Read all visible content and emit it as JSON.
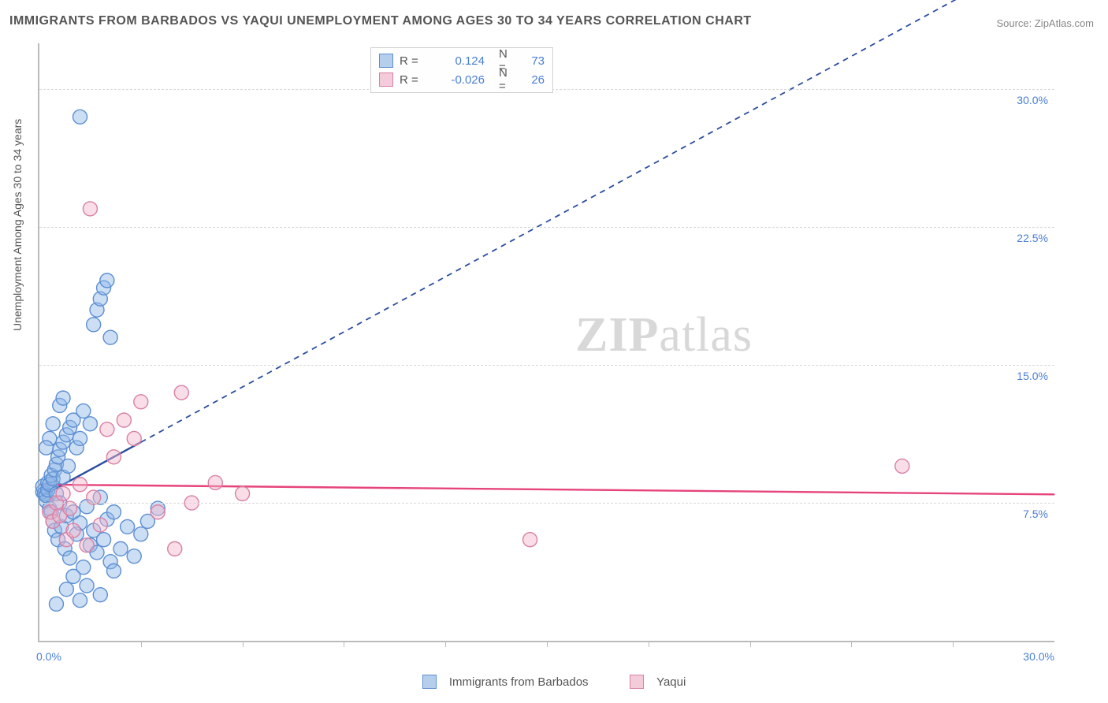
{
  "title": "IMMIGRANTS FROM BARBADOS VS YAQUI UNEMPLOYMENT AMONG AGES 30 TO 34 YEARS CORRELATION CHART",
  "source": "Source: ZipAtlas.com",
  "ylabel": "Unemployment Among Ages 30 to 34 years",
  "watermark_zip": "ZIP",
  "watermark_atlas": "atlas",
  "chart": {
    "type": "scatter",
    "xlim": [
      0,
      30
    ],
    "ylim": [
      0,
      32.5
    ],
    "x_origin_label": "0.0%",
    "x_max_label": "30.0%",
    "y_tick_values": [
      7.5,
      15.0,
      22.5,
      30.0
    ],
    "y_tick_labels": [
      "7.5%",
      "15.0%",
      "22.5%",
      "30.0%"
    ],
    "x_minor_ticks": [
      3,
      6,
      9,
      12,
      15,
      18,
      21,
      24,
      27
    ],
    "background_color": "#ffffff",
    "grid_color": "#d8d8d8",
    "axis_color": "#bbbbbb",
    "marker_radius": 9,
    "series": [
      {
        "name": "Immigrants from Barbados",
        "color_fill": "#8fb5e6",
        "color_stroke": "#5d8fd3",
        "R": "0.124",
        "N": "73",
        "trend": {
          "slope": 1.0,
          "intercept": 7.8,
          "solid_until_x": 3.0,
          "color": "#2a4da0"
        },
        "points": [
          [
            0.1,
            8.1
          ],
          [
            0.1,
            8.4
          ],
          [
            0.15,
            8.0
          ],
          [
            0.2,
            7.6
          ],
          [
            0.2,
            7.9
          ],
          [
            0.25,
            8.2
          ],
          [
            0.25,
            8.6
          ],
          [
            0.3,
            7.2
          ],
          [
            0.3,
            8.5
          ],
          [
            0.35,
            9.0
          ],
          [
            0.35,
            7.0
          ],
          [
            0.4,
            6.5
          ],
          [
            0.4,
            8.8
          ],
          [
            0.45,
            9.3
          ],
          [
            0.45,
            6.0
          ],
          [
            0.5,
            8.0
          ],
          [
            0.5,
            9.6
          ],
          [
            0.55,
            5.5
          ],
          [
            0.55,
            10.0
          ],
          [
            0.6,
            7.5
          ],
          [
            0.6,
            10.4
          ],
          [
            0.65,
            6.2
          ],
          [
            0.7,
            8.9
          ],
          [
            0.7,
            10.8
          ],
          [
            0.75,
            5.0
          ],
          [
            0.8,
            11.2
          ],
          [
            0.8,
            6.8
          ],
          [
            0.85,
            9.5
          ],
          [
            0.9,
            4.5
          ],
          [
            0.9,
            11.6
          ],
          [
            1.0,
            7.0
          ],
          [
            1.0,
            12.0
          ],
          [
            1.1,
            5.8
          ],
          [
            1.1,
            10.5
          ],
          [
            1.2,
            6.4
          ],
          [
            1.2,
            11.0
          ],
          [
            1.3,
            4.0
          ],
          [
            1.3,
            12.5
          ],
          [
            1.4,
            7.3
          ],
          [
            1.5,
            5.2
          ],
          [
            1.5,
            11.8
          ],
          [
            1.6,
            6.0
          ],
          [
            1.7,
            4.8
          ],
          [
            1.8,
            7.8
          ],
          [
            1.9,
            5.5
          ],
          [
            2.0,
            6.6
          ],
          [
            2.1,
            4.3
          ],
          [
            2.2,
            7.0
          ],
          [
            2.4,
            5.0
          ],
          [
            2.6,
            6.2
          ],
          [
            2.8,
            4.6
          ],
          [
            3.0,
            5.8
          ],
          [
            3.2,
            6.5
          ],
          [
            3.5,
            7.2
          ],
          [
            1.0,
            3.5
          ],
          [
            1.4,
            3.0
          ],
          [
            1.8,
            2.5
          ],
          [
            2.2,
            3.8
          ],
          [
            0.5,
            2.0
          ],
          [
            0.8,
            2.8
          ],
          [
            1.2,
            2.2
          ],
          [
            1.6,
            17.2
          ],
          [
            1.7,
            18.0
          ],
          [
            1.8,
            18.6
          ],
          [
            1.9,
            19.2
          ],
          [
            2.0,
            19.6
          ],
          [
            2.1,
            16.5
          ],
          [
            1.2,
            28.5
          ],
          [
            0.6,
            12.8
          ],
          [
            0.7,
            13.2
          ],
          [
            0.4,
            11.8
          ],
          [
            0.3,
            11.0
          ],
          [
            0.2,
            10.5
          ]
        ]
      },
      {
        "name": "Yaqui",
        "color_fill": "#f2b6c9",
        "color_stroke": "#d97fa4",
        "R": "-0.026",
        "N": "26",
        "trend": {
          "slope": -0.018,
          "intercept": 8.5,
          "solid_until_x": 30.0,
          "color": "#e6447b"
        },
        "points": [
          [
            0.3,
            7.0
          ],
          [
            0.4,
            6.5
          ],
          [
            0.5,
            7.5
          ],
          [
            0.6,
            6.8
          ],
          [
            0.7,
            8.0
          ],
          [
            0.8,
            5.5
          ],
          [
            0.9,
            7.2
          ],
          [
            1.0,
            6.0
          ],
          [
            1.2,
            8.5
          ],
          [
            1.4,
            5.2
          ],
          [
            1.6,
            7.8
          ],
          [
            1.8,
            6.3
          ],
          [
            2.0,
            11.5
          ],
          [
            2.2,
            10.0
          ],
          [
            2.5,
            12.0
          ],
          [
            2.8,
            11.0
          ],
          [
            3.0,
            13.0
          ],
          [
            3.5,
            7.0
          ],
          [
            4.0,
            5.0
          ],
          [
            4.2,
            13.5
          ],
          [
            4.5,
            7.5
          ],
          [
            5.2,
            8.6
          ],
          [
            6.0,
            8.0
          ],
          [
            14.5,
            5.5
          ],
          [
            25.5,
            9.5
          ],
          [
            1.5,
            23.5
          ]
        ]
      }
    ]
  },
  "legend_top": {
    "label_R": "R =",
    "label_N": "N ="
  },
  "legend_bottom": {
    "series1": "Immigrants from Barbados",
    "series2": "Yaqui"
  }
}
